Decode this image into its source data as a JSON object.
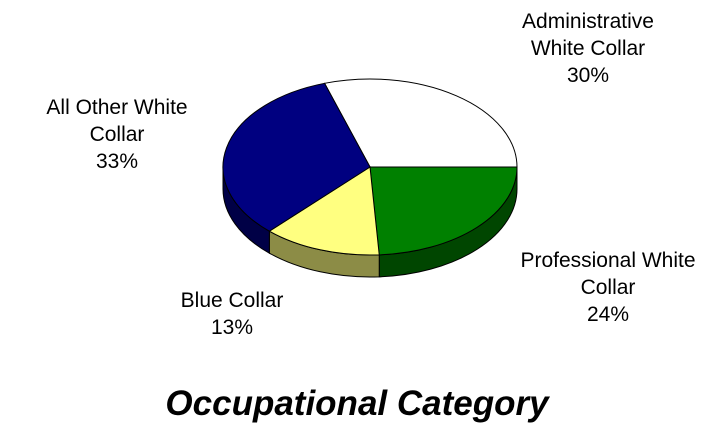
{
  "chart_data": {
    "type": "pie",
    "title": "Occupational Category",
    "categories": [
      "Administrative White Collar",
      "Professional White Collar",
      "Blue Collar",
      "All Other White Collar"
    ],
    "values": [
      30,
      24,
      13,
      33
    ],
    "value_labels": [
      "30%",
      "24%",
      "13%",
      "33%"
    ],
    "colors": [
      "#ffffff",
      "#008000",
      "#ffff80",
      "#000080"
    ]
  }
}
